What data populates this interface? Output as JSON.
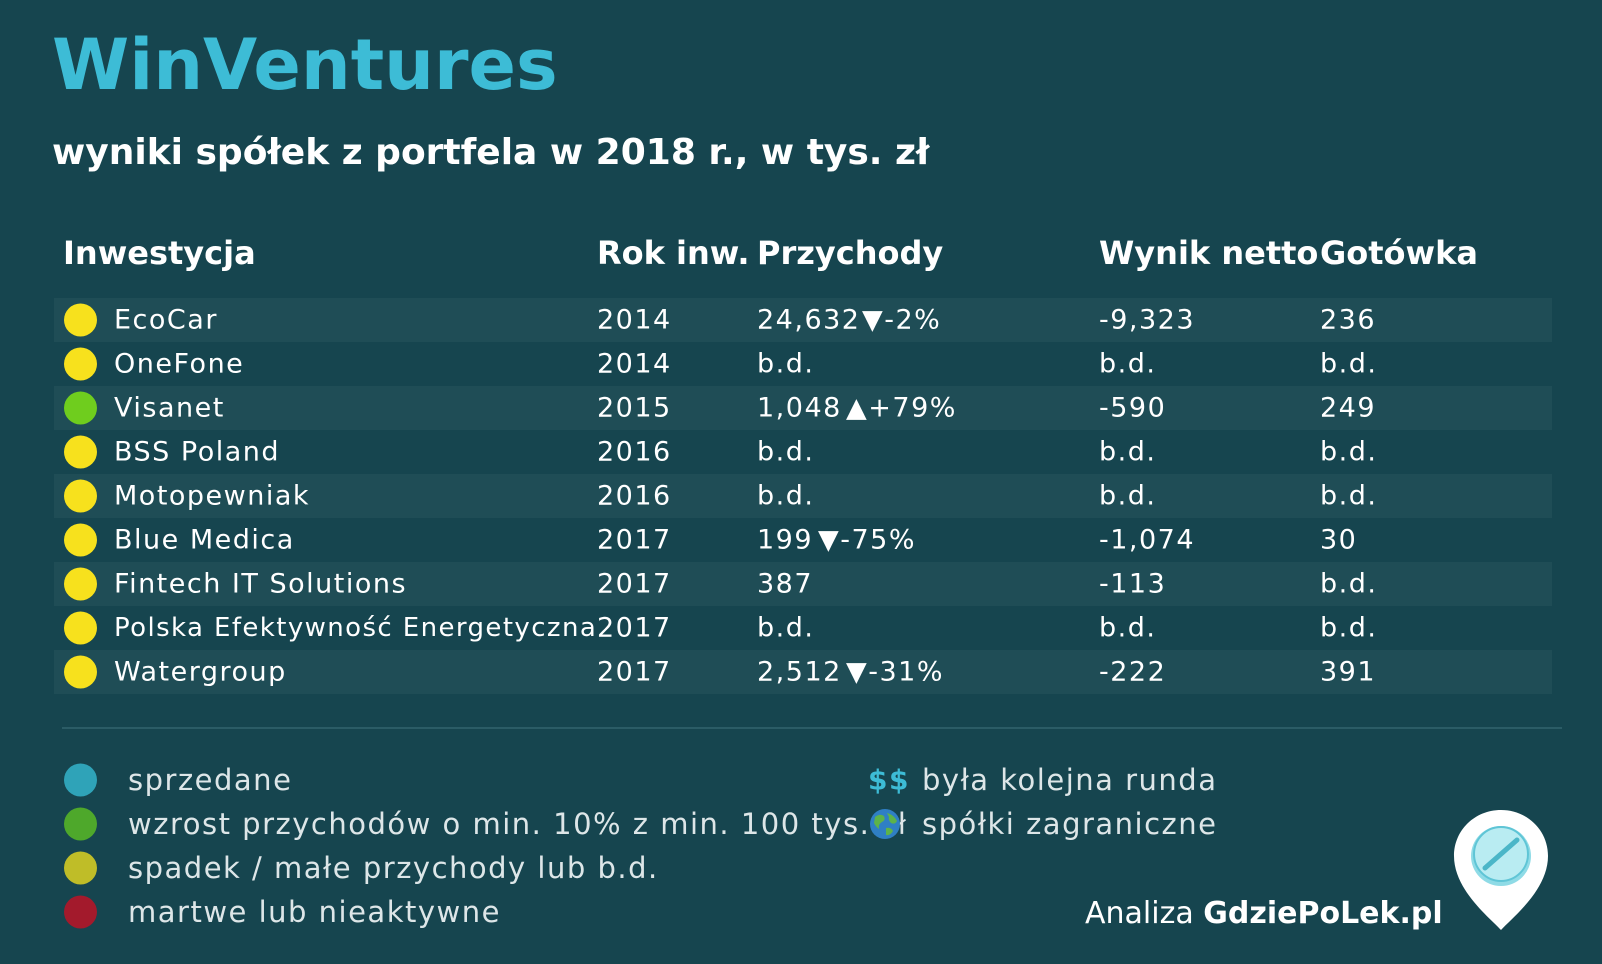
{
  "header": {
    "title": "WinVentures",
    "subtitle": "wyniki spółek z portfela w 2018 r., w tys. zł"
  },
  "table": {
    "columns": [
      "Inwestycja",
      "Rok inw.",
      "Przychody",
      "Wynik netto",
      "Gotówka"
    ],
    "rows": [
      {
        "status_color": "#f7e11d",
        "name": "EcoCar",
        "year": "2014",
        "revenue": "24,632",
        "change": "▼-2%",
        "net": "-9,323",
        "cash": "236"
      },
      {
        "status_color": "#f7e11d",
        "name": "OneFone",
        "year": "2014",
        "revenue": "b.d.",
        "change": "",
        "net": "b.d.",
        "cash": "b.d."
      },
      {
        "status_color": "#6fcd1e",
        "name": "Visanet",
        "year": "2015",
        "revenue": "1,048",
        "change": "▲+79%",
        "net": "-590",
        "cash": "249"
      },
      {
        "status_color": "#f7e11d",
        "name": "BSS Poland",
        "year": "2016",
        "revenue": "b.d.",
        "change": "",
        "net": "b.d.",
        "cash": "b.d."
      },
      {
        "status_color": "#f7e11d",
        "name": "Motopewniak",
        "year": "2016",
        "revenue": "b.d.",
        "change": "",
        "net": "b.d.",
        "cash": "b.d."
      },
      {
        "status_color": "#f7e11d",
        "name": "Blue Medica",
        "year": "2017",
        "revenue": "199",
        "change": "▼-75%",
        "net": "-1,074",
        "cash": "30"
      },
      {
        "status_color": "#f7e11d",
        "name": "Fintech IT Solutions",
        "year": "2017",
        "revenue": "387",
        "change": "",
        "net": "-113",
        "cash": "b.d."
      },
      {
        "status_color": "#f7e11d",
        "name": "Polska Efektywność Energetyczna",
        "year": "2017",
        "revenue": "b.d.",
        "change": "",
        "net": "b.d.",
        "cash": "b.d."
      },
      {
        "status_color": "#f7e11d",
        "name": "Watergroup",
        "year": "2017",
        "revenue": "2,512",
        "change": "▼-31%",
        "net": "-222",
        "cash": "391"
      }
    ]
  },
  "legend": {
    "items": [
      {
        "color": "#2fa3b8",
        "label": "sprzedane"
      },
      {
        "color": "#4ea82b",
        "label": "wzrost przychodów o min. 10% z min. 100 tys. zł"
      },
      {
        "color": "#bfbd28",
        "label": "spadek / małe przychody lub b.d."
      },
      {
        "color": "#a31a2c",
        "label": "martwe lub nieaktywne"
      }
    ],
    "extra": [
      {
        "icon": "$$",
        "label": "była kolejna runda"
      },
      {
        "icon": "globe-icon",
        "label": "spółki zagraniczne"
      }
    ]
  },
  "credit": {
    "prefix": "Analiza",
    "brand": "GdziePoLek.pl"
  },
  "colors": {
    "background": "#16454f",
    "accent": "#3dbcd6",
    "row_alt": "#1f4d56"
  }
}
